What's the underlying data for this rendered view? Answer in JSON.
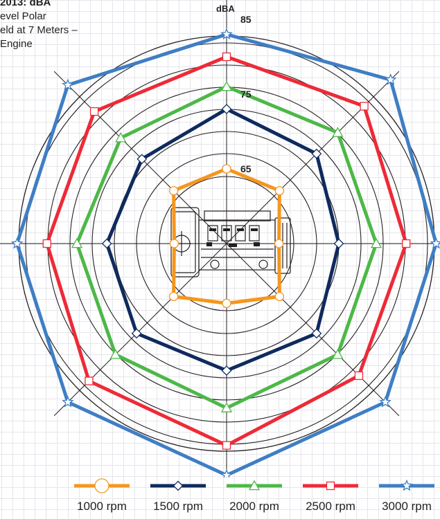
{
  "title": {
    "line1": "2013: dBA",
    "line2": "evel Polar",
    "line3": "eld at 7 Meters –",
    "line4": "Engine"
  },
  "chart_data": {
    "type": "radar",
    "unit_label": "dBA",
    "tick_labels": [
      "65",
      "75",
      "85"
    ],
    "directions": 8,
    "axes_angles_deg": [
      0,
      45,
      90,
      135,
      180,
      225,
      270,
      315
    ],
    "series": [
      {
        "name": "1000 rpm",
        "color": "#f5961e",
        "marker": "circle",
        "values": [
          65,
          65,
          62,
          65,
          63,
          65,
          62,
          65
        ]
      },
      {
        "name": "1500 rpm",
        "color": "#0f2a5e",
        "marker": "diamond",
        "values": [
          73,
          72,
          70,
          72,
          72,
          72,
          71,
          71
        ]
      },
      {
        "name": "2000 rpm",
        "color": "#4db848",
        "marker": "triangle",
        "values": [
          76,
          76,
          75,
          76,
          77,
          76,
          75,
          75
        ]
      },
      {
        "name": "2500 rpm",
        "color": "#ee2a37",
        "marker": "square",
        "values": [
          80,
          81,
          79,
          80,
          82,
          81,
          79,
          80
        ]
      },
      {
        "name": "3000 rpm",
        "color": "#3f7ec4",
        "marker": "star",
        "values": [
          83,
          86,
          83,
          85,
          86,
          85,
          83,
          85
        ]
      }
    ],
    "legend_position": "bottom"
  }
}
